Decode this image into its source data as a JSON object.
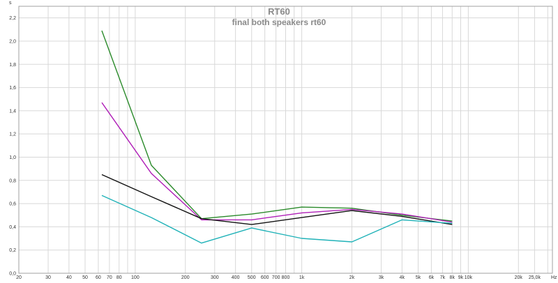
{
  "chart_data": {
    "type": "line",
    "title": "RT60",
    "subtitle": "final both speakers rt60",
    "ylabel": "s",
    "xlabel": "",
    "x_unit_label": "Hz",
    "x_scale": "log",
    "xlim": [
      20,
      32000
    ],
    "ylim": [
      0,
      2.3
    ],
    "grid": true,
    "y_ticks": [
      {
        "value": 0.0,
        "label": "0,0"
      },
      {
        "value": 0.2,
        "label": "0,2"
      },
      {
        "value": 0.4,
        "label": "0,4"
      },
      {
        "value": 0.6,
        "label": "0,6"
      },
      {
        "value": 0.8,
        "label": "0,8"
      },
      {
        "value": 1.0,
        "label": "1,0"
      },
      {
        "value": 1.2,
        "label": "1,2"
      },
      {
        "value": 1.4,
        "label": "1,4"
      },
      {
        "value": 1.6,
        "label": "1,6"
      },
      {
        "value": 1.8,
        "label": "1,8"
      },
      {
        "value": 2.0,
        "label": "2,0"
      },
      {
        "value": 2.2,
        "label": "2,2"
      }
    ],
    "x_ticks": [
      {
        "value": 20,
        "label": "20"
      },
      {
        "value": 30,
        "label": "30"
      },
      {
        "value": 40,
        "label": "40"
      },
      {
        "value": 50,
        "label": "50"
      },
      {
        "value": 60,
        "label": "60"
      },
      {
        "value": 70,
        "label": "70"
      },
      {
        "value": 80,
        "label": "80"
      },
      {
        "value": 100,
        "label": "100"
      },
      {
        "value": 200,
        "label": "200"
      },
      {
        "value": 300,
        "label": "300"
      },
      {
        "value": 400,
        "label": "400"
      },
      {
        "value": 500,
        "label": "500"
      },
      {
        "value": 600,
        "label": "600"
      },
      {
        "value": 700,
        "label": "700"
      },
      {
        "value": 800,
        "label": "800"
      },
      {
        "value": 1000,
        "label": "1k"
      },
      {
        "value": 2000,
        "label": "2k"
      },
      {
        "value": 3000,
        "label": "3k"
      },
      {
        "value": 4000,
        "label": "4k"
      },
      {
        "value": 5000,
        "label": "5k"
      },
      {
        "value": 6000,
        "label": "6k"
      },
      {
        "value": 7000,
        "label": "7k"
      },
      {
        "value": 8000,
        "label": "8k"
      },
      {
        "value": 9000,
        "label": "9k"
      },
      {
        "value": 10000,
        "label": "10k"
      },
      {
        "value": 20000,
        "label": "20k"
      },
      {
        "value": 25000,
        "label": "25,0k"
      }
    ],
    "x_minor_gridlines": [
      90,
      900,
      30000
    ],
    "series": [
      {
        "color": "#2a8a2a",
        "x": [
          63,
          125,
          250,
          500,
          1000,
          2000,
          4000,
          8000
        ],
        "values": [
          2.09,
          0.93,
          0.47,
          0.51,
          0.57,
          0.56,
          0.5,
          0.45
        ]
      },
      {
        "color": "#b020b8",
        "x": [
          63,
          125,
          250,
          500,
          1000,
          2000,
          4000,
          8000
        ],
        "values": [
          1.47,
          0.86,
          0.46,
          0.46,
          0.52,
          0.55,
          0.51,
          0.44
        ]
      },
      {
        "color": "#111111",
        "x": [
          63,
          125,
          250,
          500,
          1000,
          2000,
          4000,
          8000
        ],
        "values": [
          0.85,
          0.66,
          0.47,
          0.42,
          0.48,
          0.54,
          0.49,
          0.42
        ]
      },
      {
        "color": "#20b2b8",
        "x": [
          63,
          125,
          250,
          500,
          1000,
          2000,
          4000,
          8000
        ],
        "values": [
          0.67,
          0.48,
          0.26,
          0.39,
          0.3,
          0.27,
          0.46,
          0.43
        ]
      }
    ]
  }
}
